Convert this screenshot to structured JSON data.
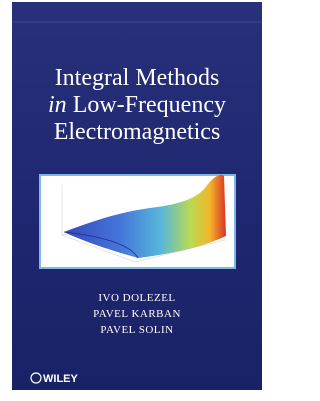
{
  "cover": {
    "title": {
      "line1": "Integral Methods",
      "line2_italic": "in",
      "line2": "Low-Frequency",
      "line3": "Electromagnetics"
    },
    "authors": [
      "IVO DOLEZEL",
      "PAVEL KARBAN",
      "PAVEL SOLIN"
    ],
    "publisher": "WILEY"
  }
}
